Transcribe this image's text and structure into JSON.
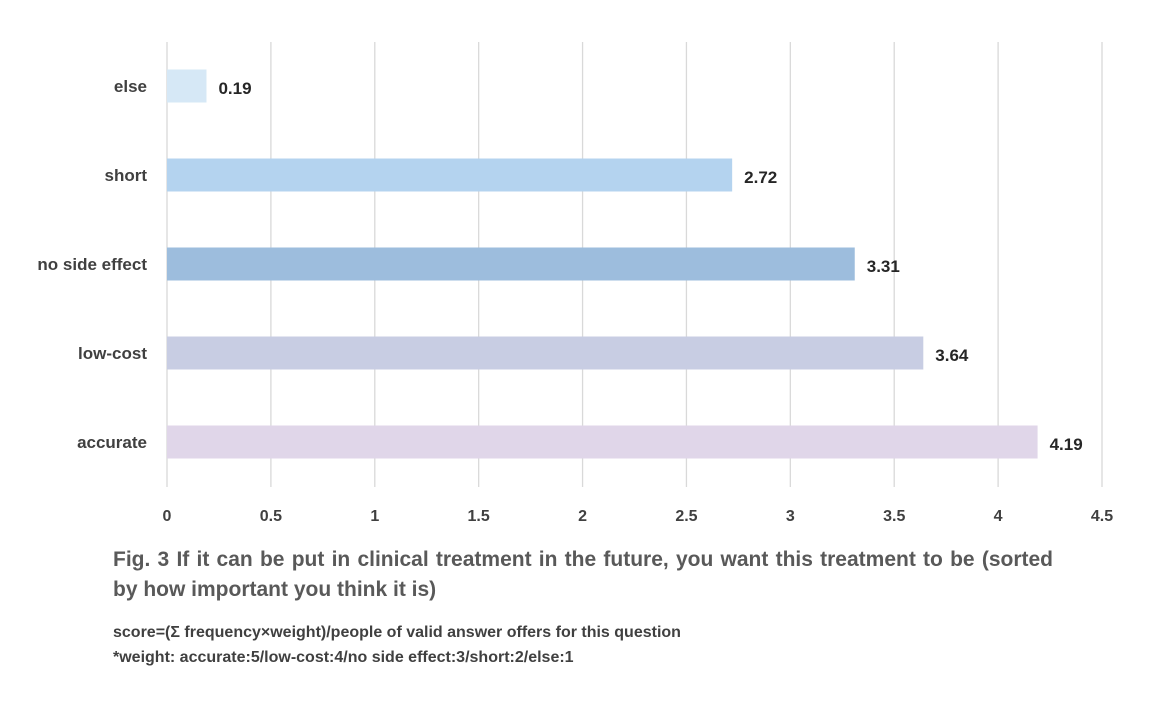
{
  "chart_data": {
    "type": "bar",
    "orientation": "horizontal",
    "categories": [
      "else",
      "short",
      "no side effect",
      "low-cost",
      "accurate"
    ],
    "values": [
      0.19,
      2.72,
      3.31,
      3.64,
      4.19
    ],
    "data_labels": [
      "0.19",
      "2.72",
      "3.31",
      "3.64",
      "4.19"
    ],
    "bar_colors": [
      "#d6e8f6",
      "#b4d3ef",
      "#9dbddd",
      "#c8cde3",
      "#e0d6e9"
    ],
    "xlim": [
      0,
      4.5
    ],
    "x_ticks": [
      0,
      0.5,
      1,
      1.5,
      2,
      2.5,
      3,
      3.5,
      4,
      4.5
    ],
    "x_tick_labels": [
      "0",
      "0.5",
      "1",
      "1.5",
      "2",
      "2.5",
      "3",
      "3.5",
      "4",
      "4.5"
    ],
    "grid": "vertical",
    "legend": "none",
    "title": "",
    "xlabel": "",
    "ylabel": ""
  },
  "caption": "Fig. 3 If it can be put in clinical treatment in the future, you want this treatment to be (sorted by how important you think it is)",
  "notes": {
    "line1": "score=(Σ frequency×weight)/people of valid answer offers for this question",
    "line2": "*weight: accurate:5/low-cost:4/no side effect:3/short:2/else:1"
  },
  "colors": {
    "gridline": "#d9d9d9",
    "text": "#404040",
    "caption_text": "#595959"
  }
}
